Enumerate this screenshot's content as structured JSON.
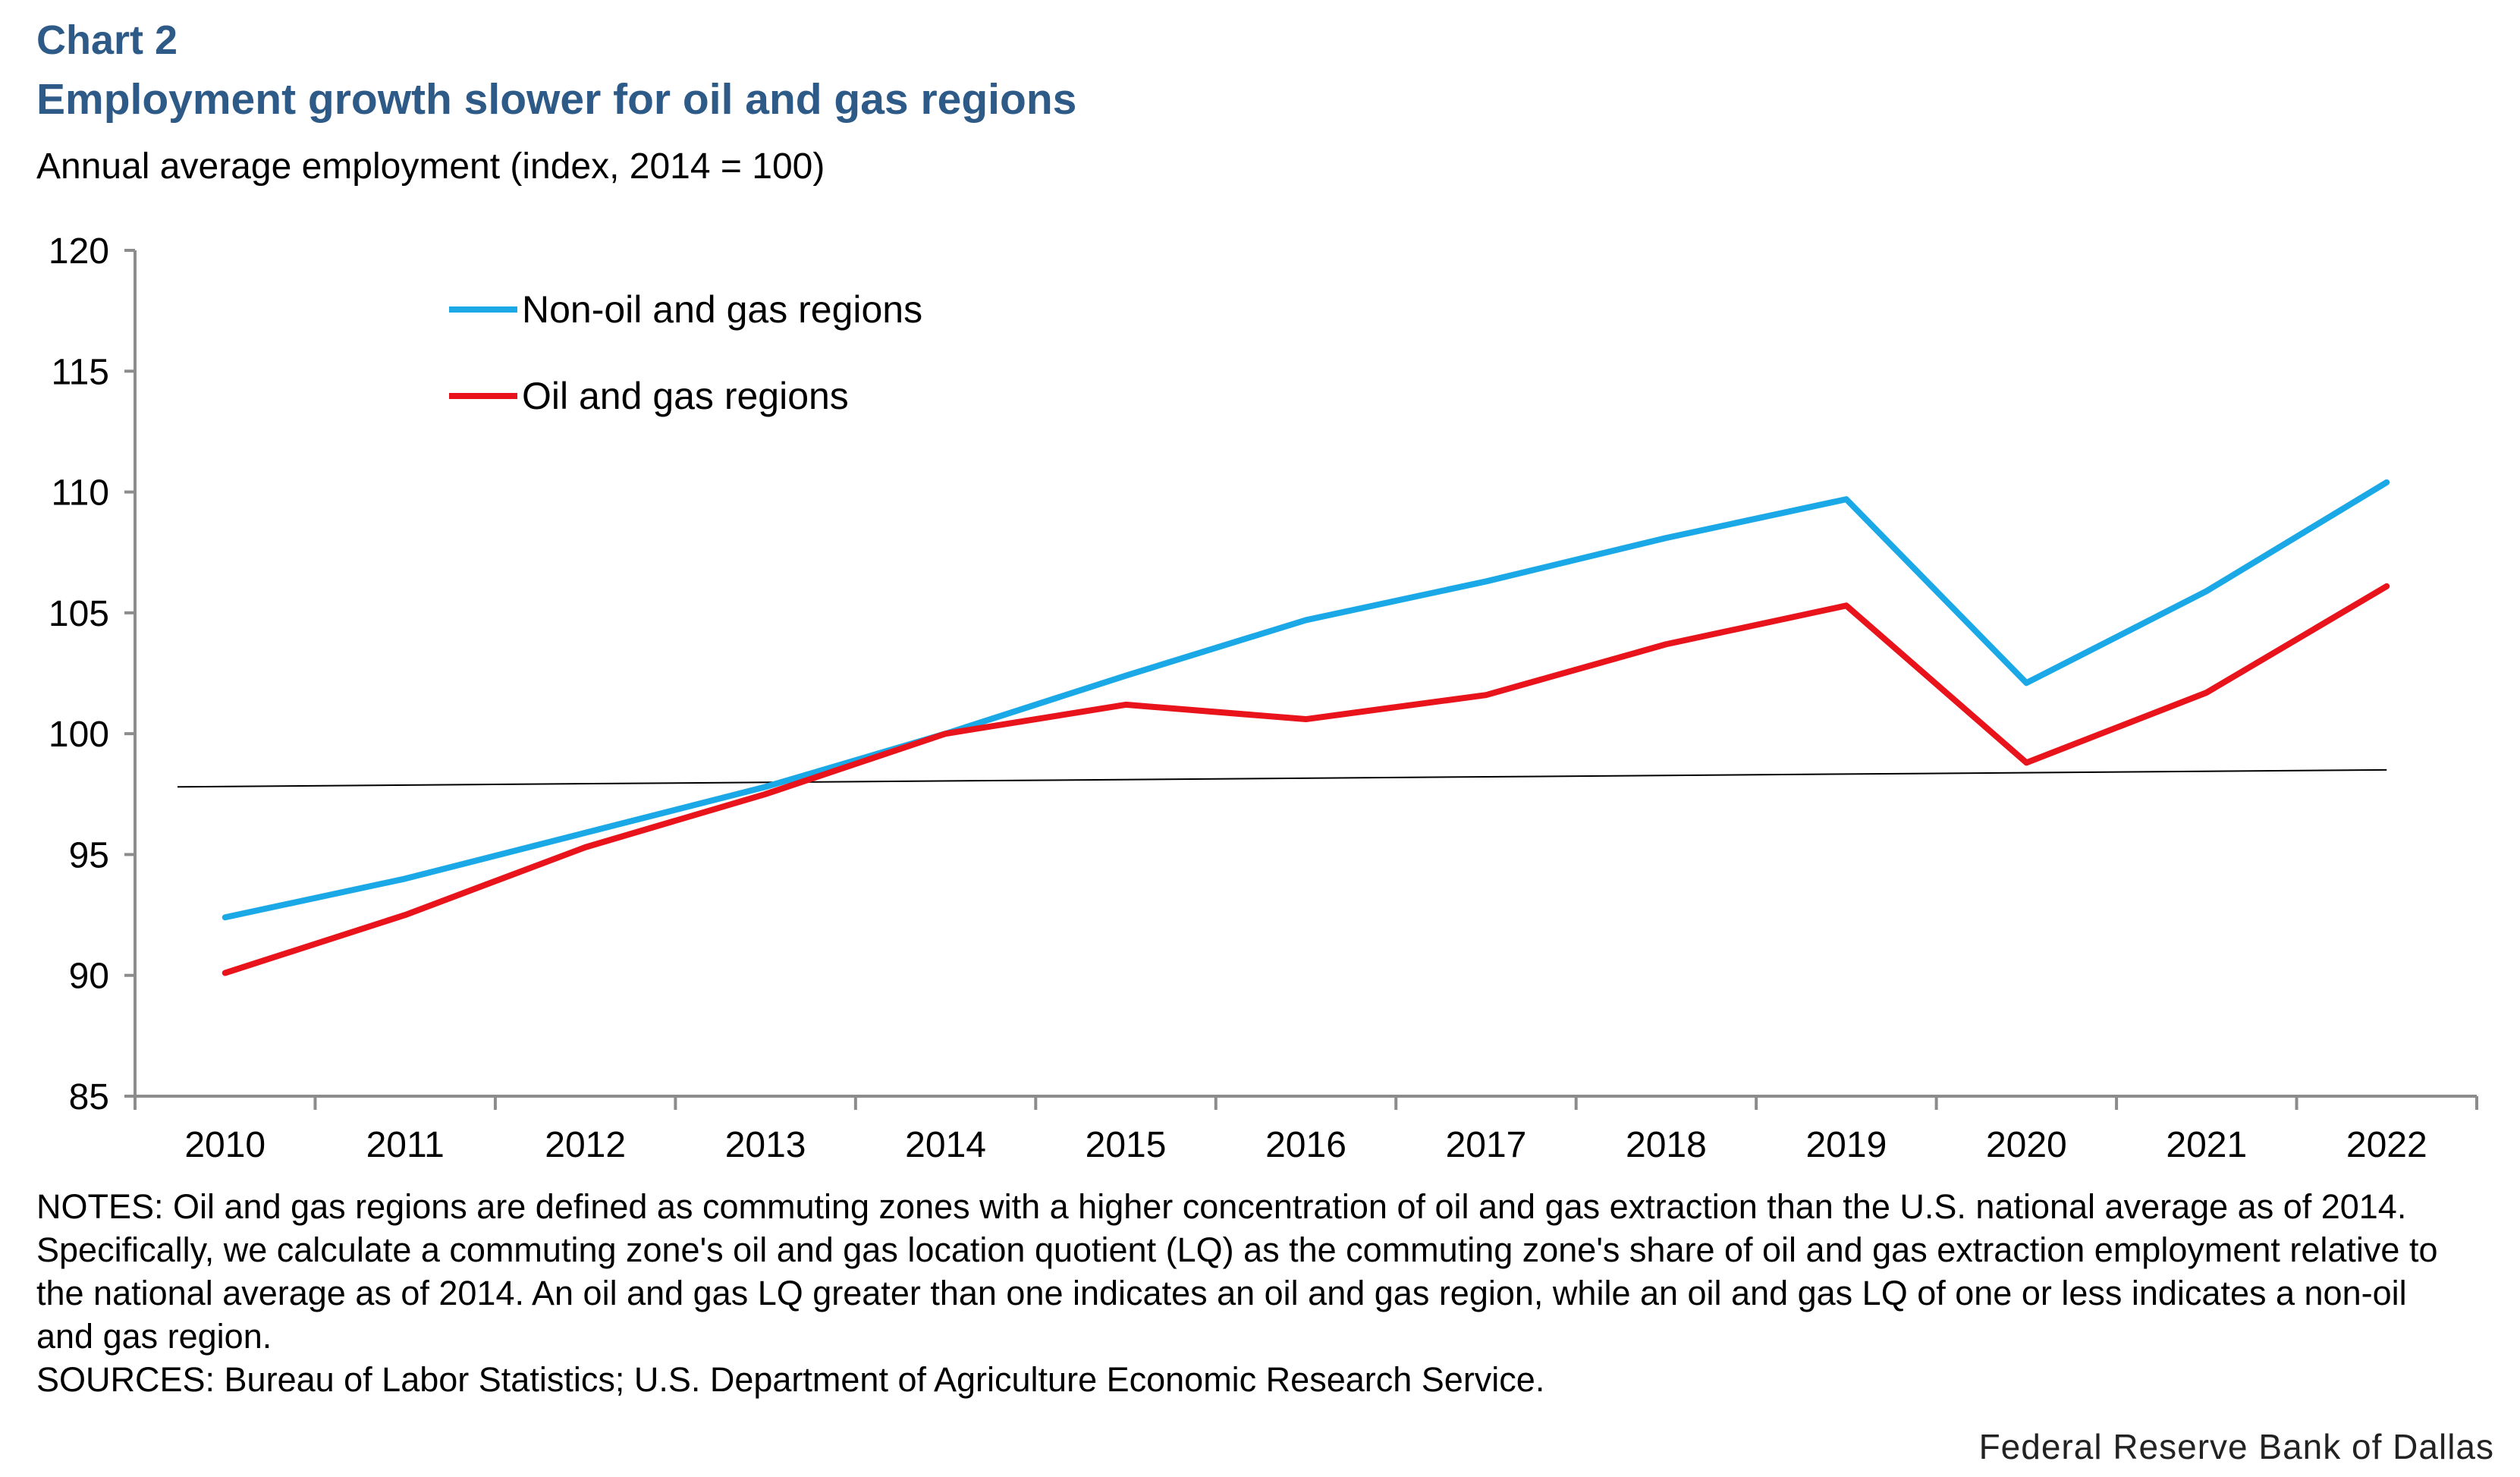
{
  "header": {
    "chart_label": "Chart 2",
    "title": "Employment growth slower for oil and gas regions",
    "subtitle": "Annual average employment (index, 2014 = 100)"
  },
  "chart_data": {
    "type": "line",
    "title": "Employment growth slower for oil and gas regions",
    "xlabel": "",
    "ylabel": "Annual average employment (index, 2014 = 100)",
    "categories": [
      "2010",
      "2011",
      "2012",
      "2013",
      "2014",
      "2015",
      "2016",
      "2017",
      "2018",
      "2019",
      "2020",
      "2021",
      "2022"
    ],
    "ylim": [
      85,
      120
    ],
    "yticks": [
      85,
      90,
      95,
      100,
      105,
      110,
      115,
      120
    ],
    "ytick_labels": [
      "85",
      "90",
      "95",
      "100",
      "105",
      "110",
      "115",
      "120"
    ],
    "legend_position": "top-left",
    "series": [
      {
        "name": "Non-oil and gas regions",
        "color": "#1aa9e6",
        "values": [
          92.4,
          94.0,
          95.9,
          97.8,
          100.0,
          102.4,
          104.7,
          106.3,
          108.1,
          109.7,
          102.1,
          105.9,
          110.4
        ]
      },
      {
        "name": "Oil and gas regions",
        "color": "#e8131b",
        "values": [
          90.1,
          92.5,
          95.3,
          97.5,
          100.0,
          101.2,
          100.6,
          101.6,
          103.7,
          105.3,
          98.8,
          101.7,
          106.1
        ]
      }
    ],
    "reference_line": {
      "color": "#000000",
      "values_at_ends": [
        97.8,
        98.5
      ]
    }
  },
  "notes": {
    "text": "NOTES: Oil and gas regions are defined as commuting zones with a higher concentration of oil and gas extraction than the U.S. national average as of 2014. Specifically, we calculate a commuting zone's oil and gas location quotient (LQ) as the commuting zone's share of oil and gas extraction employment relative to the national average as of 2014. An oil and gas LQ greater than one indicates an oil and gas region, while an oil and gas LQ of one or less indicates a non-oil and gas region.",
    "sources": "SOURCES: Bureau of Labor Statistics; U.S. Department of Agriculture Economic Research Service."
  },
  "footer": {
    "credit": "Federal Reserve Bank of Dallas"
  }
}
